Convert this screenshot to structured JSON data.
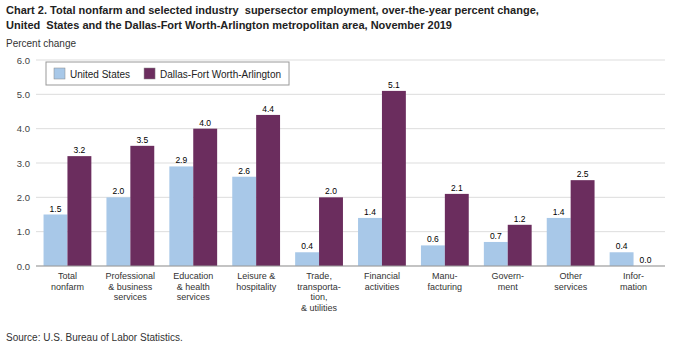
{
  "chart_data": {
    "type": "bar",
    "title": "Chart 2. Total nonfarm and selected industry  supersector employment, over-the-year percent change,",
    "subtitle": "United  States and the Dallas-Fort Worth-Arlington metropolitan area, November 2019",
    "y_label": "Percent change",
    "annotations": [
      "Source: U.S. Bureau of Labor Statistics."
    ],
    "categories": [
      "Total\nnonfarm",
      "Professional\n& business\nservices",
      "Education\n& health\nservices",
      "Leisure &\nhospitality",
      "Trade,\ntransporta-\ntion,\n& utilities",
      "Financial\nactivities",
      "Manu-\nfacturing",
      "Govern-\nment",
      "Other\nservices",
      "Infor-\nmation"
    ],
    "series": [
      {
        "name": "United States",
        "color": "#a8c8e8",
        "values": [
          1.5,
          2.0,
          2.9,
          2.6,
          0.4,
          1.4,
          0.6,
          0.7,
          1.4,
          0.4
        ],
        "value_labels": [
          "1.5",
          "2.0",
          "2.9",
          "2.6",
          "0.4",
          "1.4",
          "0.6",
          "0.7",
          "1.4",
          "0.4"
        ]
      },
      {
        "name": "Dallas-Fort Worth-Arlington",
        "color": "#6b2d5e",
        "values": [
          3.2,
          3.5,
          4.0,
          4.4,
          2.0,
          5.1,
          2.1,
          1.2,
          2.5,
          0.0
        ],
        "value_labels": [
          "3.2",
          "3.5",
          "4.0",
          "4.4",
          "2.0",
          "5.1",
          "2.1",
          "1.2",
          "2.5",
          "0.0"
        ]
      }
    ],
    "ylim": [
      0.0,
      6.0
    ],
    "yticks": [
      {
        "value": 0,
        "label": "0.0"
      },
      {
        "value": 1,
        "label": "1.0"
      },
      {
        "value": 2,
        "label": "2.0"
      },
      {
        "value": 3,
        "label": "3.0"
      },
      {
        "value": 4,
        "label": "4.0"
      },
      {
        "value": 5,
        "label": "5.0"
      },
      {
        "value": 6,
        "label": "6.0"
      }
    ],
    "grid": true,
    "legend": "upper left",
    "data_labels": true
  }
}
